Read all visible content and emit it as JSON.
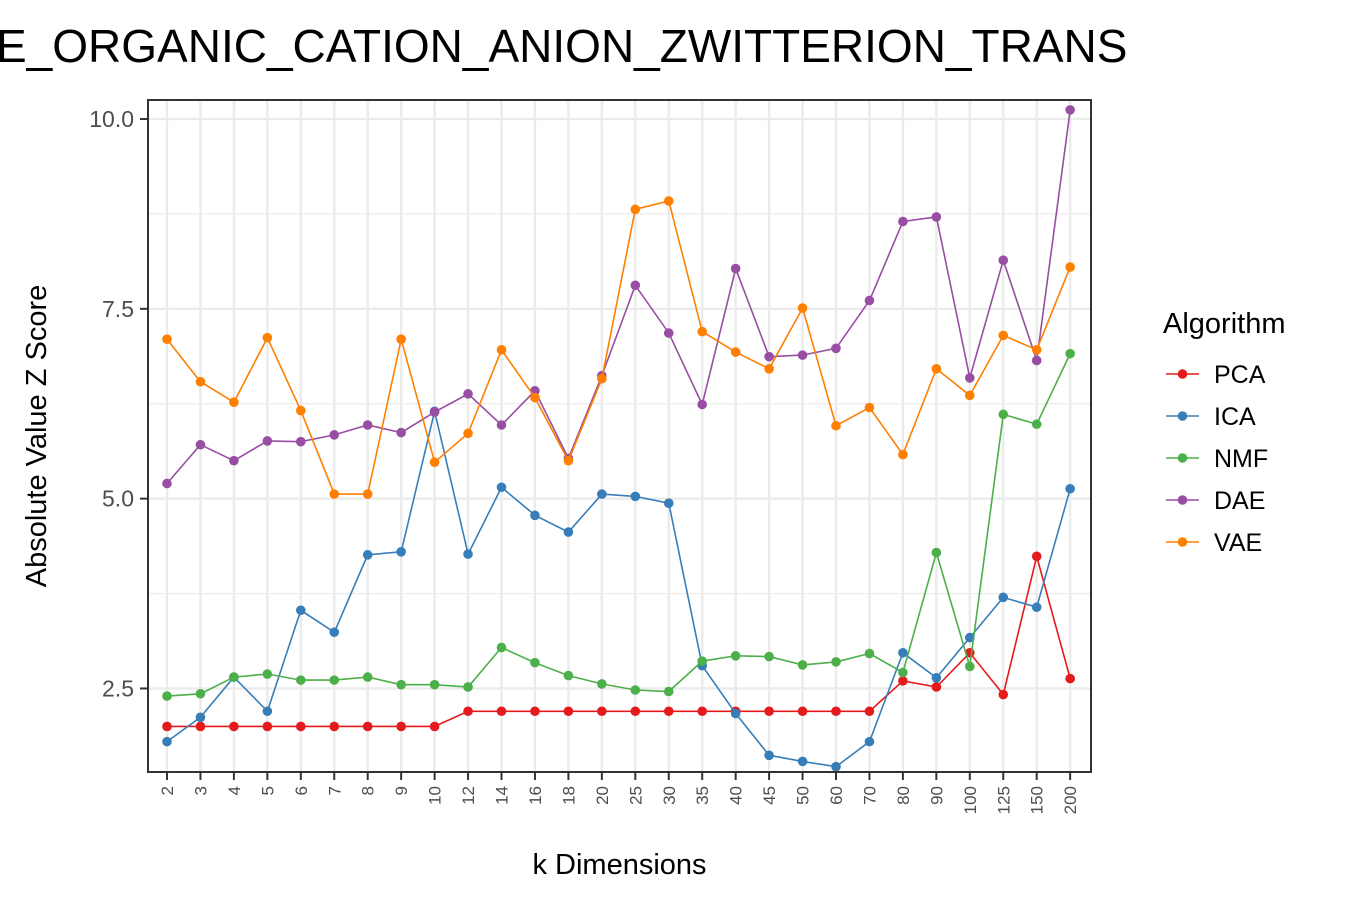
{
  "chart_data": {
    "type": "line",
    "title": "E_ORGANIC_CATION_ANION_ZWITTERION_TRANS",
    "xlabel": "k Dimensions",
    "ylabel": "Absolute Value Z Score",
    "categories": [
      "2",
      "3",
      "4",
      "5",
      "6",
      "7",
      "8",
      "9",
      "10",
      "12",
      "14",
      "16",
      "18",
      "20",
      "25",
      "30",
      "35",
      "40",
      "45",
      "50",
      "60",
      "70",
      "80",
      "90",
      "100",
      "125",
      "150",
      "200"
    ],
    "ylim": [
      1.4,
      10.25
    ],
    "yticks": [
      2.5,
      5.0,
      7.5,
      10.0
    ],
    "ytick_labels": [
      "2.5",
      "5.0",
      "7.5",
      "10.0"
    ],
    "grid": true,
    "legend": {
      "title": "Algorithm",
      "position": "right"
    },
    "series": [
      {
        "name": "PCA",
        "color": "#e41a1c",
        "values": [
          2.0,
          2.0,
          2.0,
          2.0,
          2.0,
          2.0,
          2.0,
          2.0,
          2.0,
          2.2,
          2.2,
          2.2,
          2.2,
          2.2,
          2.2,
          2.2,
          2.2,
          2.2,
          2.2,
          2.2,
          2.2,
          2.2,
          2.6,
          2.52,
          2.97,
          2.42,
          4.24,
          2.63
        ]
      },
      {
        "name": "ICA",
        "color": "#377eb8",
        "values": [
          1.8,
          2.12,
          2.65,
          2.2,
          3.53,
          3.24,
          4.26,
          4.3,
          6.15,
          4.27,
          5.15,
          4.78,
          4.56,
          5.06,
          5.03,
          4.94,
          2.8,
          2.17,
          1.62,
          1.54,
          1.47,
          1.8,
          2.97,
          2.64,
          3.17,
          3.7,
          3.57,
          5.13
        ]
      },
      {
        "name": "NMF",
        "color": "#4daf4a",
        "values": [
          2.4,
          2.43,
          2.65,
          2.69,
          2.61,
          2.61,
          2.65,
          2.55,
          2.55,
          2.52,
          3.04,
          2.84,
          2.67,
          2.56,
          2.48,
          2.46,
          2.86,
          2.93,
          2.92,
          2.81,
          2.85,
          2.96,
          2.71,
          4.29,
          2.79,
          6.11,
          5.98,
          6.91
        ]
      },
      {
        "name": "DAE",
        "color": "#984ea3",
        "values": [
          5.2,
          5.71,
          5.5,
          5.76,
          5.75,
          5.84,
          5.97,
          5.87,
          6.14,
          6.38,
          5.97,
          6.42,
          5.53,
          6.62,
          7.81,
          7.18,
          6.24,
          8.03,
          6.87,
          6.89,
          6.98,
          7.61,
          8.65,
          8.71,
          6.59,
          8.14,
          6.82,
          10.12
        ]
      },
      {
        "name": "VAE",
        "color": "#ff7f00",
        "values": [
          7.1,
          6.54,
          6.27,
          7.12,
          6.16,
          5.06,
          5.06,
          7.1,
          5.48,
          5.86,
          6.96,
          6.33,
          5.5,
          6.58,
          8.81,
          8.92,
          7.2,
          6.93,
          6.71,
          7.51,
          5.96,
          6.2,
          5.58,
          6.71,
          6.36,
          7.15,
          6.96,
          8.05
        ]
      }
    ]
  }
}
